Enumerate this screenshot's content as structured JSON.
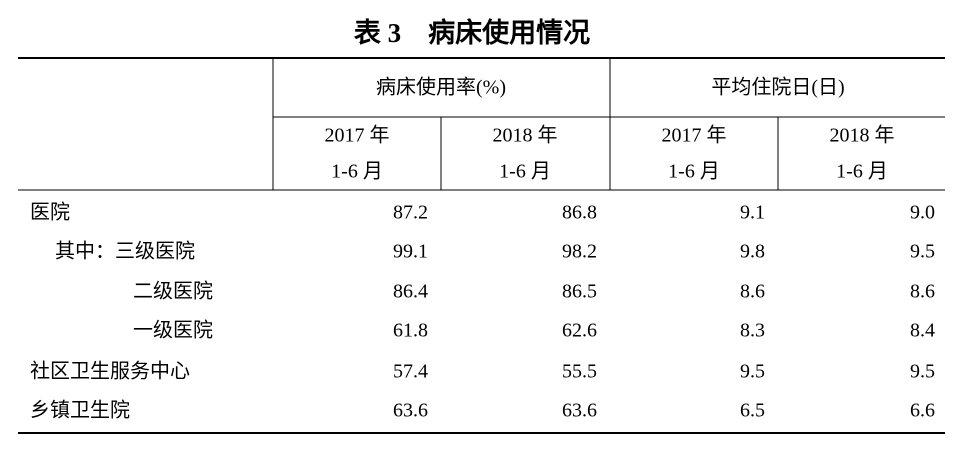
{
  "title": "表 3　病床使用情况",
  "table": {
    "groups": [
      "病床使用率(%)",
      "平均住院日(日)"
    ],
    "columns": [
      [
        "2017 年",
        "1-6 月"
      ],
      [
        "2018 年",
        "1-6 月"
      ],
      [
        "2017 年",
        "1-6 月"
      ],
      [
        "2018 年",
        "1-6 月"
      ]
    ],
    "rows": [
      [
        "医院",
        "87.2",
        "86.8",
        "9.1",
        "9.0"
      ],
      [
        "其中：三级医院",
        "99.1",
        "98.2",
        "9.8",
        "9.5"
      ],
      [
        "二级医院",
        "86.4",
        "86.5",
        "8.6",
        "8.6"
      ],
      [
        "一级医院",
        "61.8",
        "62.6",
        "8.3",
        "8.4"
      ],
      [
        "社区卫生服务中心",
        "57.4",
        "55.5",
        "9.5",
        "9.5"
      ],
      [
        "乡镇卫生院",
        "63.6",
        "63.6",
        "6.5",
        "6.6"
      ]
    ]
  }
}
